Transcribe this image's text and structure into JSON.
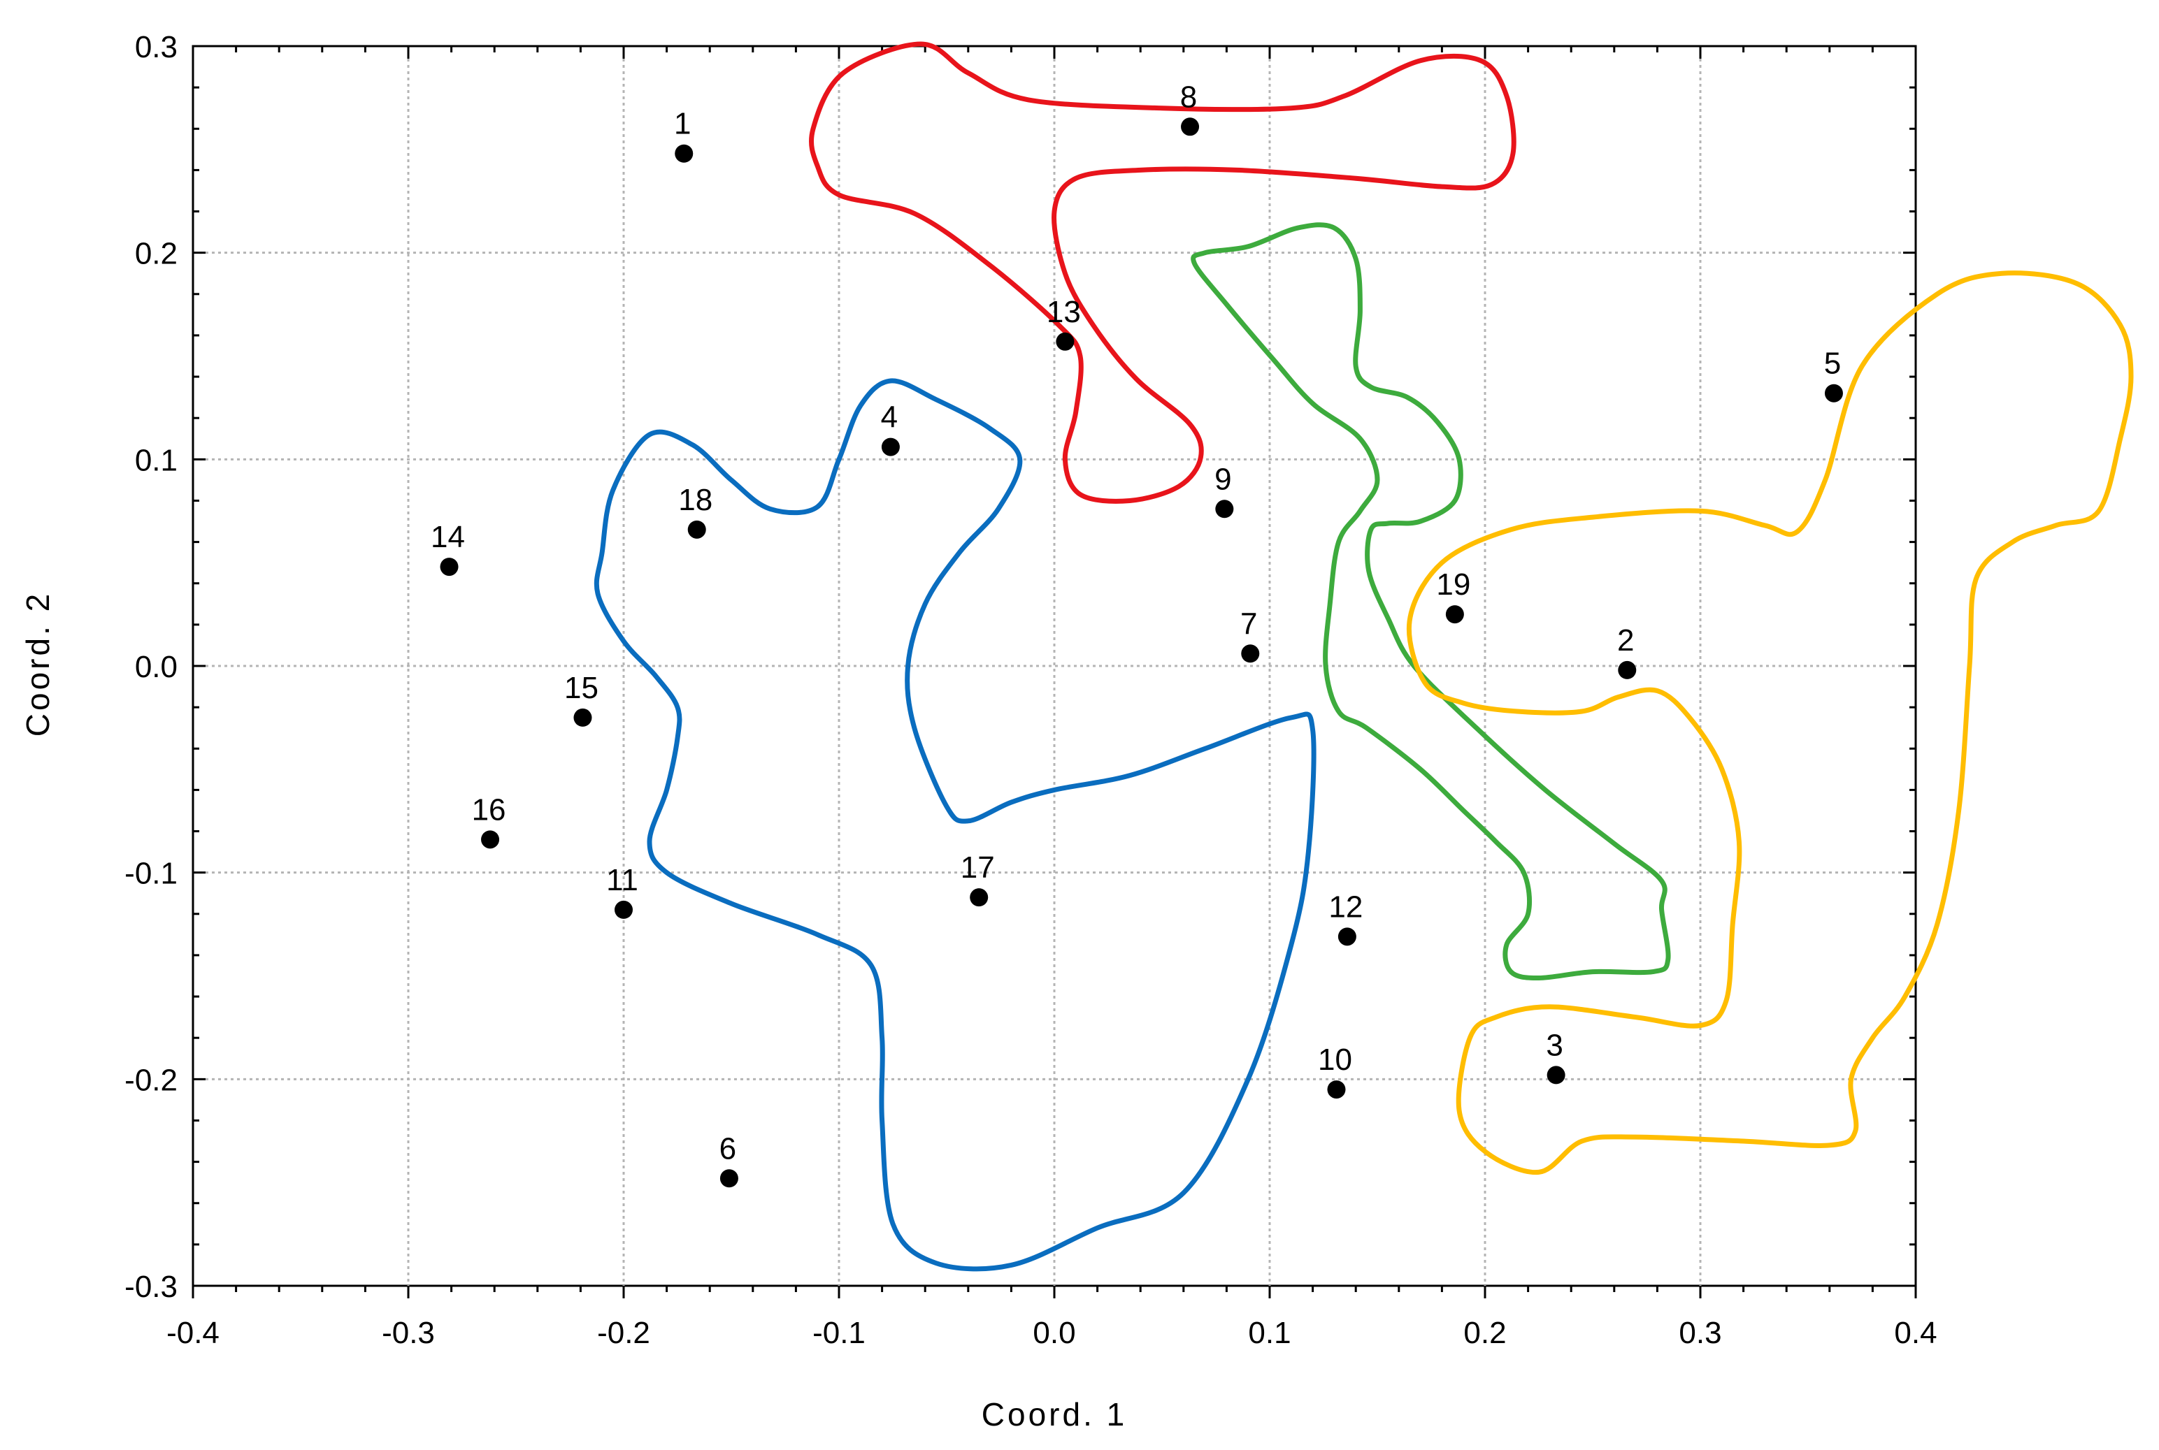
{
  "chart_data": {
    "type": "scatter",
    "title": "",
    "xlabel": "Coord. 1",
    "ylabel": "Coord. 2",
    "xlim": [
      -0.4,
      0.4
    ],
    "ylim": [
      -0.3,
      0.3
    ],
    "xticks": [
      -0.4,
      -0.3,
      -0.2,
      -0.1,
      0.0,
      0.1,
      0.2,
      0.3,
      0.4
    ],
    "yticks": [
      -0.3,
      -0.2,
      -0.1,
      0.0,
      0.1,
      0.2,
      0.3
    ],
    "xtick_labels": [
      "-0.4",
      "-0.3",
      "-0.2",
      "-0.1",
      "0.0",
      "0.1",
      "0.2",
      "0.3",
      "0.4"
    ],
    "ytick_labels": [
      "-0.3",
      "-0.2",
      "-0.1",
      "0.0",
      "0.1",
      "0.2",
      "0.3"
    ],
    "grid": true,
    "points": [
      {
        "label": "1",
        "x": -0.172,
        "y": 0.248
      },
      {
        "label": "2",
        "x": 0.266,
        "y": -0.002
      },
      {
        "label": "3",
        "x": 0.233,
        "y": -0.198
      },
      {
        "label": "4",
        "x": -0.076,
        "y": 0.106
      },
      {
        "label": "5",
        "x": 0.362,
        "y": 0.132
      },
      {
        "label": "6",
        "x": -0.151,
        "y": -0.248
      },
      {
        "label": "7",
        "x": 0.091,
        "y": 0.006
      },
      {
        "label": "8",
        "x": 0.063,
        "y": 0.261
      },
      {
        "label": "9",
        "x": 0.079,
        "y": 0.076
      },
      {
        "label": "10",
        "x": 0.131,
        "y": -0.205
      },
      {
        "label": "11",
        "x": -0.2,
        "y": -0.118
      },
      {
        "label": "12",
        "x": 0.136,
        "y": -0.131
      },
      {
        "label": "13",
        "x": 0.005,
        "y": 0.157
      },
      {
        "label": "14",
        "x": -0.281,
        "y": 0.048
      },
      {
        "label": "15",
        "x": -0.219,
        "y": -0.025
      },
      {
        "label": "16",
        "x": -0.262,
        "y": -0.084
      },
      {
        "label": "17",
        "x": -0.035,
        "y": -0.112
      },
      {
        "label": "18",
        "x": -0.166,
        "y": 0.066
      },
      {
        "label": "19",
        "x": 0.186,
        "y": 0.025
      }
    ],
    "clusters": [
      {
        "color": "#e8141b",
        "outline": [
          [
            -0.112,
            0.26
          ],
          [
            -0.098,
            0.287
          ],
          [
            -0.062,
            0.301
          ],
          [
            -0.04,
            0.287
          ],
          [
            -0.012,
            0.274
          ],
          [
            0.05,
            0.27
          ],
          [
            0.11,
            0.27
          ],
          [
            0.135,
            0.276
          ],
          [
            0.17,
            0.293
          ],
          [
            0.198,
            0.293
          ],
          [
            0.21,
            0.276
          ],
          [
            0.213,
            0.248
          ],
          [
            0.203,
            0.233
          ],
          [
            0.18,
            0.232
          ],
          [
            0.14,
            0.236
          ],
          [
            0.085,
            0.24
          ],
          [
            0.04,
            0.24
          ],
          [
            0.01,
            0.236
          ],
          [
            0.0,
            0.22
          ],
          [
            0.005,
            0.19
          ],
          [
            0.018,
            0.165
          ],
          [
            0.038,
            0.139
          ],
          [
            0.063,
            0.117
          ],
          [
            0.068,
            0.101
          ],
          [
            0.058,
            0.087
          ],
          [
            0.035,
            0.08
          ],
          [
            0.012,
            0.083
          ],
          [
            0.005,
            0.1
          ],
          [
            0.01,
            0.123
          ],
          [
            0.012,
            0.15
          ],
          [
            0.002,
            0.165
          ],
          [
            -0.03,
            0.194
          ],
          [
            -0.065,
            0.219
          ],
          [
            -0.1,
            0.228
          ],
          [
            -0.11,
            0.242
          ],
          [
            -0.112,
            0.26
          ]
        ]
      },
      {
        "color": "#3dab3d",
        "outline": [
          [
            0.065,
            0.195
          ],
          [
            0.07,
            0.2
          ],
          [
            0.09,
            0.203
          ],
          [
            0.113,
            0.212
          ],
          [
            0.13,
            0.212
          ],
          [
            0.14,
            0.197
          ],
          [
            0.142,
            0.172
          ],
          [
            0.14,
            0.145
          ],
          [
            0.147,
            0.135
          ],
          [
            0.164,
            0.13
          ],
          [
            0.178,
            0.118
          ],
          [
            0.188,
            0.1
          ],
          [
            0.186,
            0.08
          ],
          [
            0.17,
            0.07
          ],
          [
            0.155,
            0.069
          ],
          [
            0.147,
            0.066
          ],
          [
            0.146,
            0.046
          ],
          [
            0.155,
            0.023
          ],
          [
            0.167,
            0.0
          ],
          [
            0.196,
            -0.03
          ],
          [
            0.228,
            -0.06
          ],
          [
            0.26,
            -0.086
          ],
          [
            0.282,
            -0.104
          ],
          [
            0.282,
            -0.118
          ],
          [
            0.285,
            -0.142
          ],
          [
            0.278,
            -0.148
          ],
          [
            0.25,
            -0.148
          ],
          [
            0.225,
            -0.151
          ],
          [
            0.212,
            -0.148
          ],
          [
            0.21,
            -0.135
          ],
          [
            0.22,
            -0.12
          ],
          [
            0.218,
            -0.1
          ],
          [
            0.205,
            -0.085
          ],
          [
            0.19,
            -0.07
          ],
          [
            0.17,
            -0.05
          ],
          [
            0.145,
            -0.03
          ],
          [
            0.132,
            -0.022
          ],
          [
            0.126,
            0.0
          ],
          [
            0.128,
            0.03
          ],
          [
            0.132,
            0.06
          ],
          [
            0.142,
            0.075
          ],
          [
            0.15,
            0.09
          ],
          [
            0.142,
            0.11
          ],
          [
            0.12,
            0.127
          ],
          [
            0.102,
            0.148
          ],
          [
            0.08,
            0.175
          ],
          [
            0.065,
            0.195
          ]
        ]
      },
      {
        "color": "#0a6dbf",
        "outline": [
          [
            -0.21,
            0.055
          ],
          [
            -0.205,
            0.085
          ],
          [
            -0.188,
            0.112
          ],
          [
            -0.168,
            0.107
          ],
          [
            -0.15,
            0.09
          ],
          [
            -0.132,
            0.076
          ],
          [
            -0.11,
            0.077
          ],
          [
            -0.1,
            0.1
          ],
          [
            -0.09,
            0.126
          ],
          [
            -0.076,
            0.138
          ],
          [
            -0.055,
            0.129
          ],
          [
            -0.03,
            0.115
          ],
          [
            -0.016,
            0.1
          ],
          [
            -0.026,
            0.076
          ],
          [
            -0.044,
            0.055
          ],
          [
            -0.06,
            0.03
          ],
          [
            -0.068,
            0.0
          ],
          [
            -0.065,
            -0.03
          ],
          [
            -0.05,
            -0.068
          ],
          [
            -0.04,
            -0.075
          ],
          [
            -0.02,
            -0.066
          ],
          [
            0.0,
            -0.06
          ],
          [
            0.035,
            -0.053
          ],
          [
            0.07,
            -0.04
          ],
          [
            0.11,
            -0.025
          ],
          [
            0.12,
            -0.031
          ],
          [
            0.118,
            -0.09
          ],
          [
            0.11,
            -0.135
          ],
          [
            0.09,
            -0.2
          ],
          [
            0.06,
            -0.255
          ],
          [
            0.02,
            -0.272
          ],
          [
            -0.02,
            -0.29
          ],
          [
            -0.055,
            -0.289
          ],
          [
            -0.075,
            -0.27
          ],
          [
            -0.08,
            -0.22
          ],
          [
            -0.08,
            -0.18
          ],
          [
            -0.085,
            -0.145
          ],
          [
            -0.11,
            -0.13
          ],
          [
            -0.15,
            -0.115
          ],
          [
            -0.18,
            -0.1
          ],
          [
            -0.188,
            -0.085
          ],
          [
            -0.18,
            -0.06
          ],
          [
            -0.175,
            -0.035
          ],
          [
            -0.175,
            -0.02
          ],
          [
            -0.185,
            -0.005
          ],
          [
            -0.2,
            0.012
          ],
          [
            -0.212,
            0.035
          ],
          [
            -0.21,
            0.055
          ]
        ]
      },
      {
        "color": "#ffbd00",
        "outline": [
          [
            0.165,
            0.022
          ],
          [
            0.18,
            0.05
          ],
          [
            0.212,
            0.066
          ],
          [
            0.25,
            0.072
          ],
          [
            0.3,
            0.075
          ],
          [
            0.33,
            0.068
          ],
          [
            0.345,
            0.065
          ],
          [
            0.358,
            0.09
          ],
          [
            0.375,
            0.145
          ],
          [
            0.41,
            0.18
          ],
          [
            0.44,
            0.19
          ],
          [
            0.475,
            0.185
          ],
          [
            0.495,
            0.165
          ],
          [
            0.5,
            0.14
          ],
          [
            0.495,
            0.11
          ],
          [
            0.485,
            0.075
          ],
          [
            0.465,
            0.068
          ],
          [
            0.445,
            0.06
          ],
          [
            0.428,
            0.042
          ],
          [
            0.425,
            0.0
          ],
          [
            0.42,
            -0.07
          ],
          [
            0.41,
            -0.125
          ],
          [
            0.395,
            -0.16
          ],
          [
            0.38,
            -0.18
          ],
          [
            0.37,
            -0.2
          ],
          [
            0.372,
            -0.225
          ],
          [
            0.36,
            -0.232
          ],
          [
            0.32,
            -0.23
          ],
          [
            0.27,
            -0.228
          ],
          [
            0.245,
            -0.23
          ],
          [
            0.225,
            -0.245
          ],
          [
            0.2,
            -0.235
          ],
          [
            0.188,
            -0.215
          ],
          [
            0.193,
            -0.18
          ],
          [
            0.205,
            -0.17
          ],
          [
            0.23,
            -0.165
          ],
          [
            0.27,
            -0.17
          ],
          [
            0.3,
            -0.174
          ],
          [
            0.312,
            -0.162
          ],
          [
            0.315,
            -0.125
          ],
          [
            0.318,
            -0.085
          ],
          [
            0.31,
            -0.05
          ],
          [
            0.295,
            -0.025
          ],
          [
            0.28,
            -0.012
          ],
          [
            0.262,
            -0.015
          ],
          [
            0.245,
            -0.022
          ],
          [
            0.215,
            -0.022
          ],
          [
            0.19,
            -0.018
          ],
          [
            0.172,
            -0.008
          ],
          [
            0.165,
            0.022
          ]
        ]
      }
    ]
  }
}
